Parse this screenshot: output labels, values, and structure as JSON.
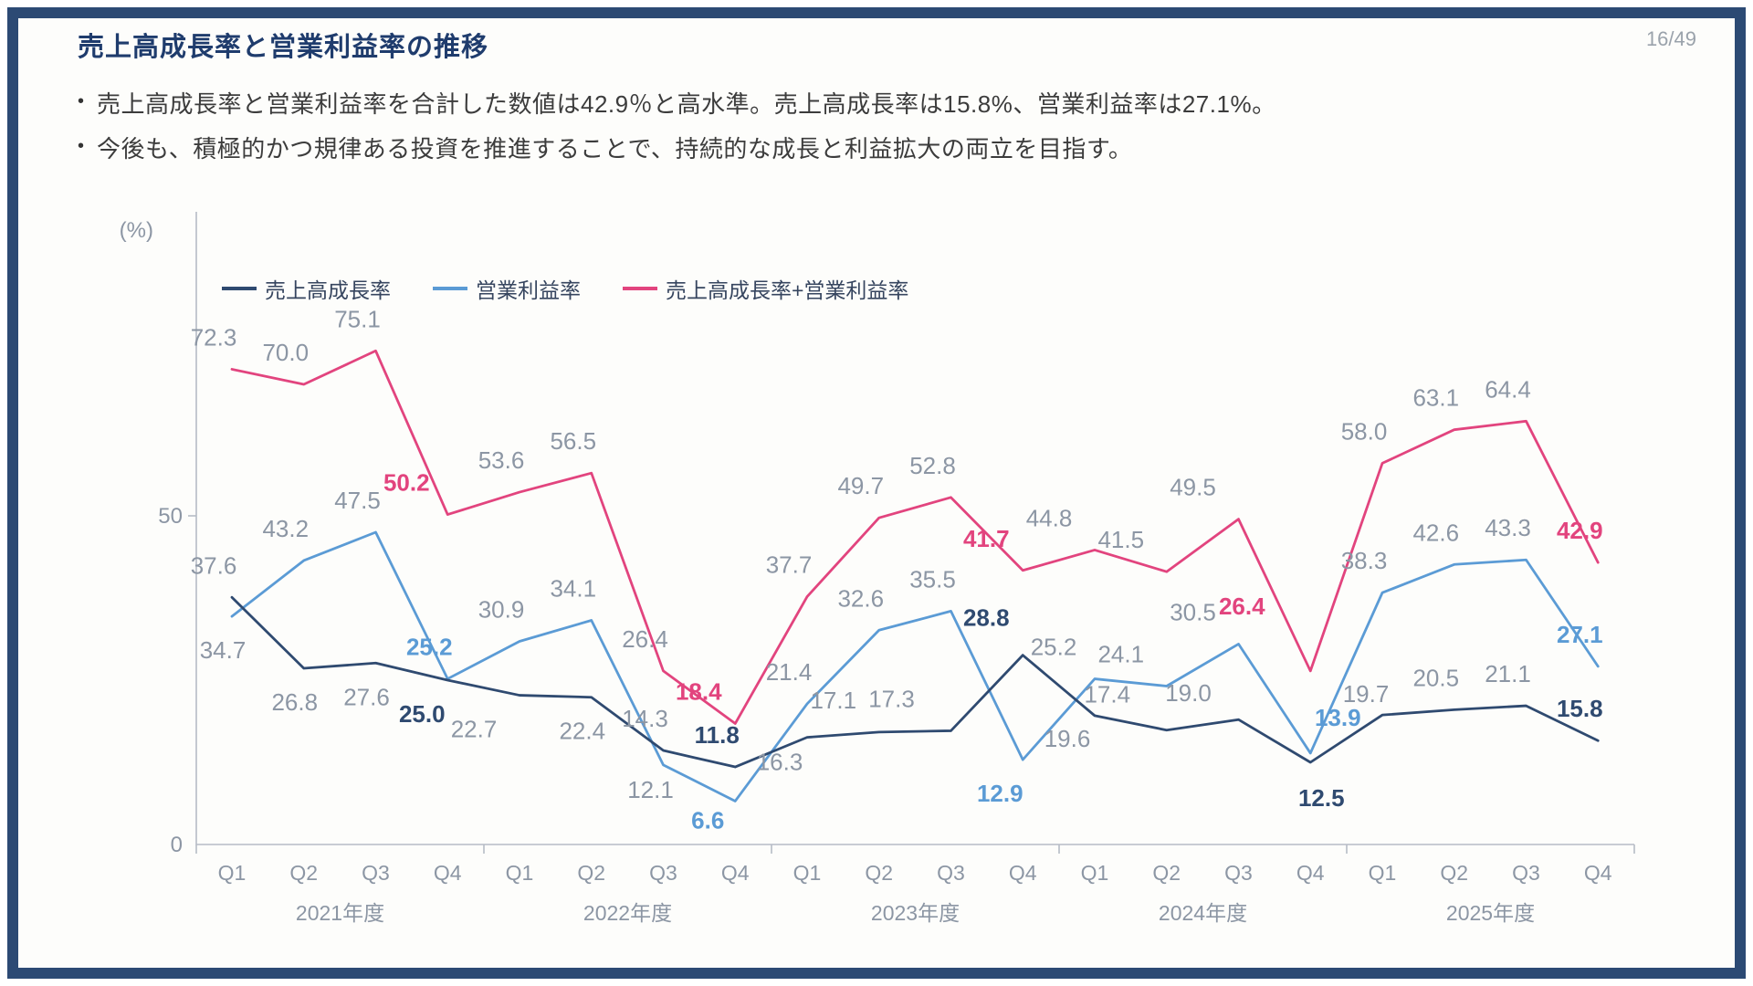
{
  "page": {
    "number": "16/49"
  },
  "title": "売上高成長率と営業利益率の推移",
  "bullets": [
    "売上高成長率と営業利益率を合計した数値は42.9％と高水準。売上高成長率は15.8%、営業利益率は27.1%。",
    "今後も、積極的かつ規律ある投資を推進することで、持続的な成長と利益拡大の両立を目指す。"
  ],
  "chart_data": {
    "type": "line",
    "unit_label": "(%)",
    "ylim": [
      0,
      96
    ],
    "yticks": [
      0,
      50
    ],
    "grid": "off",
    "legend_position": "top-left",
    "x_years": [
      "2021年度",
      "2022年度",
      "2023年度",
      "2024年度",
      "2025年度"
    ],
    "x_quarters": [
      "Q1",
      "Q2",
      "Q3",
      "Q4"
    ],
    "label_default_color": "#8c96a4",
    "axis_color": "#b6bcc6",
    "highlight_rule": "Q4-of-each-year labels are bold and colored per series",
    "series": [
      {
        "name": "売上高成長率",
        "color": "#2f4a70",
        "values": [
          37.6,
          26.8,
          27.6,
          25.0,
          22.7,
          22.4,
          14.3,
          11.8,
          16.3,
          17.1,
          17.3,
          28.8,
          19.6,
          17.4,
          19.0,
          12.5,
          19.7,
          20.5,
          21.1,
          15.8
        ]
      },
      {
        "name": "営業利益率",
        "color": "#5b9bd5",
        "values": [
          34.7,
          43.2,
          47.5,
          25.2,
          30.9,
          34.1,
          12.1,
          6.6,
          21.4,
          32.6,
          35.5,
          12.9,
          25.2,
          24.1,
          30.5,
          13.9,
          38.3,
          42.6,
          43.3,
          27.1
        ]
      },
      {
        "name": "売上高成長率+営業利益率",
        "color": "#e2447e",
        "values": [
          72.3,
          70.0,
          75.1,
          50.2,
          53.6,
          56.5,
          26.4,
          18.4,
          37.7,
          49.7,
          52.8,
          41.7,
          44.8,
          41.5,
          49.5,
          26.4,
          58.0,
          63.1,
          64.4,
          42.9
        ]
      }
    ]
  }
}
